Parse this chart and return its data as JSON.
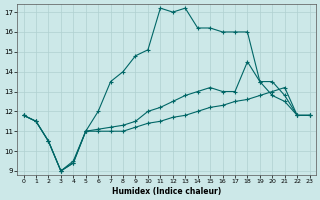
{
  "xlabel": "Humidex (Indice chaleur)",
  "bg_color": "#cce8e8",
  "grid_color": "#b0d0d0",
  "line_color": "#006666",
  "xlim": [
    -0.5,
    23.5
  ],
  "ylim": [
    8.8,
    17.4
  ],
  "xticks": [
    0,
    1,
    2,
    3,
    4,
    5,
    6,
    7,
    8,
    9,
    10,
    11,
    12,
    13,
    14,
    15,
    16,
    17,
    18,
    19,
    20,
    21,
    22,
    23
  ],
  "yticks": [
    9,
    10,
    11,
    12,
    13,
    14,
    15,
    16,
    17
  ],
  "line_main_x": [
    0,
    1,
    2,
    3,
    4,
    5,
    6,
    7,
    8,
    9,
    10,
    11,
    12,
    13,
    14,
    15,
    16,
    17,
    18,
    19,
    20,
    21,
    22,
    23
  ],
  "line_main_y": [
    11.8,
    11.5,
    10.5,
    9.0,
    9.4,
    11.0,
    12.0,
    13.5,
    14.0,
    14.8,
    15.1,
    17.2,
    17.0,
    17.2,
    16.2,
    16.2,
    16.0,
    16.0,
    16.0,
    13.5,
    12.8,
    12.5,
    11.8,
    11.8
  ],
  "line_mid_x": [
    0,
    1,
    2,
    3,
    4,
    5,
    6,
    7,
    8,
    9,
    10,
    11,
    12,
    13,
    14,
    15,
    16,
    17,
    18,
    19,
    20,
    21,
    22,
    23
  ],
  "line_mid_y": [
    11.8,
    11.5,
    10.5,
    9.0,
    9.5,
    11.0,
    11.1,
    11.2,
    11.3,
    11.5,
    12.0,
    12.2,
    12.5,
    12.8,
    13.0,
    13.2,
    13.0,
    13.0,
    14.5,
    13.5,
    13.5,
    12.8,
    11.8,
    11.8
  ],
  "line_low_x": [
    0,
    1,
    2,
    3,
    4,
    5,
    6,
    7,
    8,
    9,
    10,
    11,
    12,
    13,
    14,
    15,
    16,
    17,
    18,
    19,
    20,
    21,
    22,
    23
  ],
  "line_low_y": [
    11.8,
    11.5,
    10.5,
    9.0,
    9.4,
    11.0,
    11.0,
    11.0,
    11.0,
    11.2,
    11.4,
    11.5,
    11.7,
    11.8,
    12.0,
    12.2,
    12.3,
    12.5,
    12.6,
    12.8,
    13.0,
    13.2,
    11.8,
    11.8
  ]
}
